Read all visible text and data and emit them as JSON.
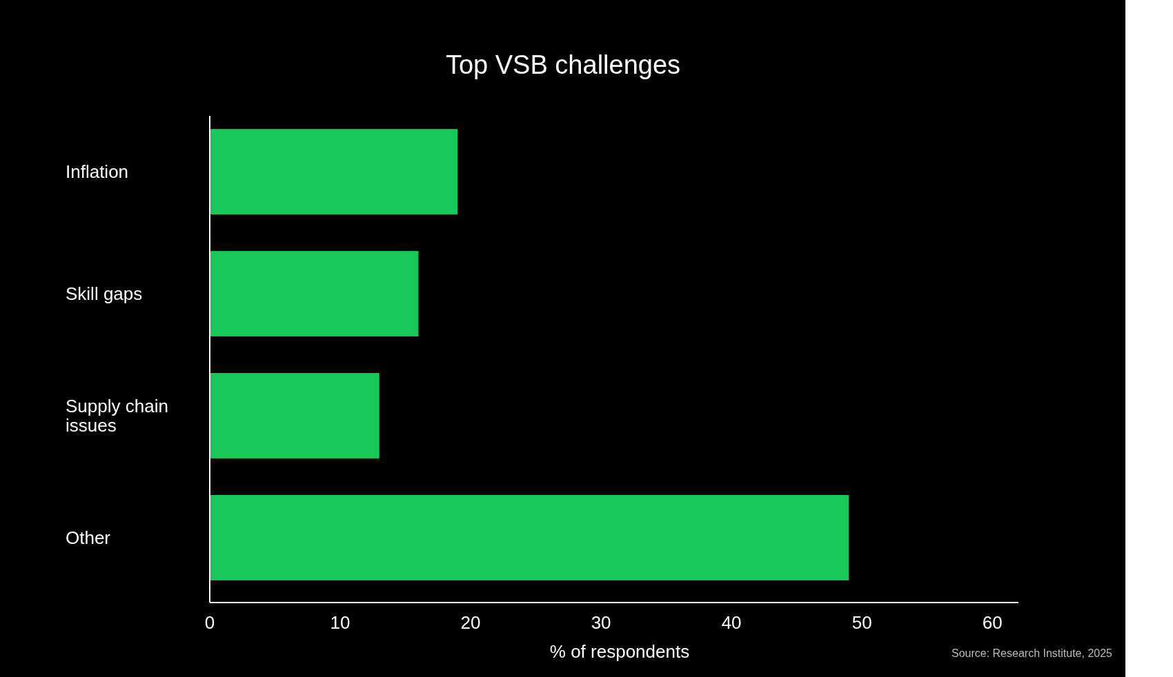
{
  "chart_data": {
    "type": "bar",
    "orientation": "horizontal",
    "title": "Top VSB challenges",
    "xlabel": "% of respondents",
    "categories": [
      "Inflation",
      "Skill gaps",
      "Supply chain issues",
      "Other"
    ],
    "values": [
      19,
      16,
      13,
      49
    ],
    "color": "#18c95a",
    "xlim": [
      0,
      62
    ],
    "xticks": [
      0,
      10,
      20,
      30,
      40,
      50,
      60
    ],
    "grid": false,
    "annotations": [
      "Source: Research Institute, 2025"
    ]
  }
}
